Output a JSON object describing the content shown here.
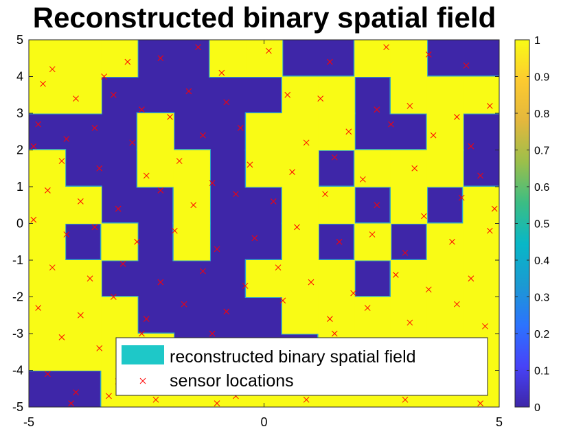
{
  "chart_data": {
    "type": "heatmap",
    "title": "Reconstructed binary spatial field",
    "xlabel": "",
    "ylabel": "",
    "xlim": [
      -5,
      5
    ],
    "ylim": [
      -5,
      5
    ],
    "x_ticks": [
      "-5",
      "0",
      "5"
    ],
    "y_ticks": [
      "5",
      "4",
      "3",
      "2",
      "1",
      "0",
      "-1",
      "-2",
      "-3",
      "-4",
      "-5"
    ],
    "colorbar": {
      "range": [
        0,
        1
      ],
      "ticks": [
        "1",
        "0.9",
        "0.8",
        "0.7",
        "0.6",
        "0.5",
        "0.4",
        "0.3",
        "0.2",
        "0.1",
        "0"
      ],
      "colormap": [
        "#3e26a8",
        "#4743f8",
        "#2c73fe",
        "#1b9ad2",
        "#08b7c7",
        "#3bbd84",
        "#9bbf4b",
        "#e3b73d",
        "#fdca30",
        "#f9fb15"
      ]
    },
    "legend": {
      "location": "bottom-center",
      "entries": [
        "reconstructed binary spatial field",
        "sensor locations"
      ],
      "field_swatch_color": "#1ec8c8",
      "marker_color": "#ff0000",
      "marker": "x"
    },
    "field_grid": {
      "rows_top_to_bottom": 10,
      "cols_left_to_right": 13,
      "values": [
        [
          1,
          1,
          1,
          0,
          0,
          1,
          1,
          0,
          0,
          1,
          1,
          0,
          0
        ],
        [
          1,
          1,
          0,
          0,
          0,
          0,
          0,
          1,
          1,
          0,
          1,
          1,
          1
        ],
        [
          0,
          0,
          0,
          1,
          0,
          0,
          1,
          1,
          1,
          0,
          0,
          1,
          0
        ],
        [
          1,
          0,
          0,
          1,
          1,
          0,
          1,
          1,
          0,
          1,
          1,
          1,
          0
        ],
        [
          1,
          1,
          0,
          0,
          1,
          0,
          0,
          1,
          1,
          0,
          1,
          0,
          1
        ],
        [
          1,
          0,
          1,
          0,
          1,
          0,
          0,
          1,
          0,
          1,
          0,
          1,
          1
        ],
        [
          1,
          1,
          0,
          0,
          0,
          0,
          1,
          1,
          1,
          0,
          1,
          1,
          1
        ],
        [
          1,
          1,
          1,
          0,
          0,
          0,
          0,
          1,
          1,
          1,
          1,
          1,
          1
        ],
        [
          1,
          1,
          1,
          1,
          0,
          0,
          0,
          0,
          1,
          1,
          1,
          1,
          1
        ],
        [
          0,
          0,
          1,
          1,
          1,
          1,
          1,
          1,
          1,
          1,
          1,
          1,
          1
        ]
      ]
    },
    "sensor_locations": [
      [
        -4.5,
        4.2
      ],
      [
        -3.4,
        4.0
      ],
      [
        -2.9,
        4.4
      ],
      [
        -2.2,
        4.5
      ],
      [
        -1.4,
        4.8
      ],
      [
        -0.9,
        4.1
      ],
      [
        0.1,
        4.7
      ],
      [
        1.4,
        4.4
      ],
      [
        2.6,
        4.8
      ],
      [
        3.5,
        4.6
      ],
      [
        4.3,
        4.3
      ],
      [
        4.8,
        3.2
      ],
      [
        -4.7,
        3.8
      ],
      [
        -4.0,
        3.4
      ],
      [
        -3.2,
        3.5
      ],
      [
        -2.6,
        3.1
      ],
      [
        -1.6,
        3.6
      ],
      [
        -0.8,
        3.3
      ],
      [
        0.5,
        3.5
      ],
      [
        1.2,
        3.4
      ],
      [
        2.4,
        3.1
      ],
      [
        3.1,
        3.2
      ],
      [
        4.1,
        2.9
      ],
      [
        -4.8,
        2.7
      ],
      [
        -4.2,
        2.3
      ],
      [
        -3.6,
        2.6
      ],
      [
        -2.8,
        2.2
      ],
      [
        -2.0,
        2.9
      ],
      [
        -1.3,
        2.4
      ],
      [
        -0.5,
        2.6
      ],
      [
        0.9,
        2.2
      ],
      [
        1.8,
        2.5
      ],
      [
        2.7,
        2.7
      ],
      [
        3.6,
        2.4
      ],
      [
        4.4,
        2.1
      ],
      [
        -4.9,
        2.1
      ],
      [
        -4.3,
        1.7
      ],
      [
        -3.5,
        1.5
      ],
      [
        -2.5,
        1.3
      ],
      [
        -1.8,
        1.7
      ],
      [
        -1.1,
        1.1
      ],
      [
        -0.3,
        1.6
      ],
      [
        0.6,
        1.4
      ],
      [
        1.5,
        1.8
      ],
      [
        2.1,
        1.2
      ],
      [
        3.2,
        1.5
      ],
      [
        4.6,
        1.3
      ],
      [
        -4.6,
        0.9
      ],
      [
        -3.9,
        0.6
      ],
      [
        -3.1,
        0.4
      ],
      [
        -2.2,
        0.9
      ],
      [
        -1.5,
        0.5
      ],
      [
        -0.6,
        0.8
      ],
      [
        0.2,
        0.6
      ],
      [
        1.3,
        0.8
      ],
      [
        2.4,
        0.5
      ],
      [
        3.4,
        0.2
      ],
      [
        4.2,
        0.7
      ],
      [
        4.9,
        0.4
      ],
      [
        -4.9,
        0.1
      ],
      [
        -4.2,
        -0.3
      ],
      [
        -3.6,
        -0.1
      ],
      [
        -2.7,
        -0.5
      ],
      [
        -1.9,
        -0.2
      ],
      [
        -1.0,
        -0.7
      ],
      [
        -0.2,
        -0.4
      ],
      [
        0.7,
        -0.1
      ],
      [
        1.6,
        -0.5
      ],
      [
        2.3,
        -0.3
      ],
      [
        3.0,
        -0.8
      ],
      [
        4.0,
        -0.5
      ],
      [
        4.8,
        -0.2
      ],
      [
        -4.5,
        -1.2
      ],
      [
        -3.7,
        -1.5
      ],
      [
        -3.0,
        -1.1
      ],
      [
        -2.2,
        -1.6
      ],
      [
        -1.3,
        -1.3
      ],
      [
        -0.4,
        -1.7
      ],
      [
        0.3,
        -1.2
      ],
      [
        1.0,
        -1.6
      ],
      [
        1.9,
        -1.9
      ],
      [
        2.8,
        -1.4
      ],
      [
        3.5,
        -1.8
      ],
      [
        4.4,
        -1.5
      ],
      [
        -4.8,
        -2.3
      ],
      [
        -3.9,
        -2.5
      ],
      [
        -3.2,
        -2.0
      ],
      [
        -2.5,
        -2.6
      ],
      [
        -1.7,
        -2.2
      ],
      [
        -0.8,
        -2.4
      ],
      [
        0.4,
        -2.1
      ],
      [
        1.4,
        -2.6
      ],
      [
        2.2,
        -2.3
      ],
      [
        3.1,
        -2.7
      ],
      [
        4.1,
        -2.2
      ],
      [
        4.7,
        -2.8
      ],
      [
        -4.3,
        -3.1
      ],
      [
        -3.5,
        -3.4
      ],
      [
        -2.6,
        -3.0
      ],
      [
        -1.8,
        -3.3
      ],
      [
        -1.1,
        -3.0
      ],
      [
        -0.3,
        -3.5
      ],
      [
        0.6,
        -3.2
      ],
      [
        1.5,
        -3.0
      ],
      [
        2.4,
        -3.6
      ],
      [
        3.3,
        -3.2
      ],
      [
        4.0,
        -3.5
      ],
      [
        -4.6,
        -4.1
      ],
      [
        -4.0,
        -4.6
      ],
      [
        -3.1,
        -4.3
      ],
      [
        -2.3,
        -4.8
      ],
      [
        -1.5,
        -4.4
      ],
      [
        -0.6,
        -4.7
      ],
      [
        0.5,
        -4.2
      ],
      [
        1.3,
        -4.6
      ],
      [
        2.1,
        -4.3
      ],
      [
        3.0,
        -4.8
      ],
      [
        3.9,
        -4.4
      ],
      [
        4.6,
        -4.9
      ],
      [
        -4.1,
        -4.9
      ],
      [
        -3.3,
        -4.7
      ],
      [
        -2.0,
        -4.5
      ],
      [
        -1.0,
        -4.9
      ],
      [
        0.9,
        -4.8
      ]
    ]
  }
}
